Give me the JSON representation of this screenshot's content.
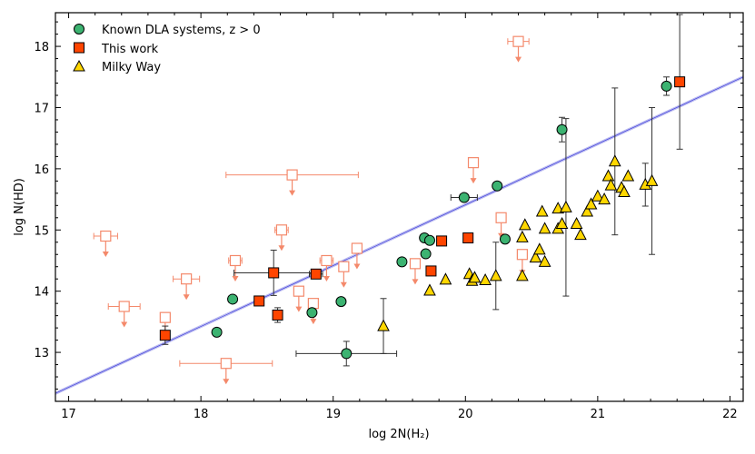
{
  "chart_data": {
    "type": "scatter",
    "xlabel": "log 2N(H₂)",
    "ylabel": "log N(HD)",
    "xlim": [
      16.9,
      22.1
    ],
    "ylim": [
      12.2,
      18.55
    ],
    "xticks": [
      17,
      18,
      19,
      20,
      21,
      22
    ],
    "yticks": [
      13,
      14,
      15,
      16,
      17,
      18
    ],
    "legend_position": "top-left",
    "fit_line": {
      "x": [
        16.9,
        22.1
      ],
      "y": [
        12.33,
        17.5
      ],
      "color": "#4a4adb"
    },
    "colors": {
      "known_dla": "#3cb371",
      "this_work": "#ff4500",
      "milky_way": "#ffd700",
      "upper_limit": "#f4896b",
      "errorbar": "#333333"
    },
    "series": [
      {
        "name": "Known DLA systems, z > 0",
        "marker": "circle",
        "points": [
          {
            "x": 18.12,
            "y": 13.33
          },
          {
            "x": 18.24,
            "y": 13.87
          },
          {
            "x": 18.84,
            "y": 13.65
          },
          {
            "x": 19.06,
            "y": 13.83
          },
          {
            "x": 19.1,
            "y": 12.98,
            "xerr": 0.38,
            "yerr": 0.2
          },
          {
            "x": 19.52,
            "y": 14.48
          },
          {
            "x": 19.69,
            "y": 14.87
          },
          {
            "x": 19.7,
            "y": 14.61
          },
          {
            "x": 19.73,
            "y": 14.83
          },
          {
            "x": 19.99,
            "y": 15.53,
            "xerr": 0.1
          },
          {
            "x": 20.24,
            "y": 15.72
          },
          {
            "x": 20.3,
            "y": 14.85
          },
          {
            "x": 20.73,
            "y": 16.64,
            "yerr": 0.2
          },
          {
            "x": 21.52,
            "y": 17.35,
            "yerr": 0.15
          }
        ]
      },
      {
        "name": "This work",
        "marker": "square",
        "points": [
          {
            "x": 17.73,
            "y": 13.28,
            "yerr": 0.15
          },
          {
            "x": 18.44,
            "y": 13.84
          },
          {
            "x": 18.55,
            "y": 14.3,
            "xerr": 0.3,
            "yerr": 0.37
          },
          {
            "x": 18.58,
            "y": 13.61,
            "yerr": 0.12
          },
          {
            "x": 18.87,
            "y": 14.28,
            "xerr": 0.05
          },
          {
            "x": 19.74,
            "y": 14.33
          },
          {
            "x": 19.82,
            "y": 14.82
          },
          {
            "x": 20.02,
            "y": 14.87
          },
          {
            "x": 21.62,
            "y": 17.42,
            "yerr": 1.1
          }
        ]
      },
      {
        "name": "Milky Way",
        "marker": "triangle",
        "points": [
          {
            "x": 19.38,
            "y": 13.43,
            "yerr": 0.45
          },
          {
            "x": 19.73,
            "y": 14.01
          },
          {
            "x": 19.85,
            "y": 14.19
          },
          {
            "x": 20.03,
            "y": 14.28
          },
          {
            "x": 20.05,
            "y": 14.17
          },
          {
            "x": 20.07,
            "y": 14.22
          },
          {
            "x": 20.15,
            "y": 14.18
          },
          {
            "x": 20.23,
            "y": 14.25,
            "yerr": 0.55
          },
          {
            "x": 20.43,
            "y": 14.25
          },
          {
            "x": 20.43,
            "y": 14.88
          },
          {
            "x": 20.45,
            "y": 15.08
          },
          {
            "x": 20.53,
            "y": 14.55
          },
          {
            "x": 20.56,
            "y": 14.68
          },
          {
            "x": 20.58,
            "y": 15.3
          },
          {
            "x": 20.6,
            "y": 14.48
          },
          {
            "x": 20.6,
            "y": 15.02
          },
          {
            "x": 20.7,
            "y": 15.35
          },
          {
            "x": 20.7,
            "y": 15.02
          },
          {
            "x": 20.73,
            "y": 15.1
          },
          {
            "x": 20.76,
            "y": 15.37,
            "yerr": 1.45
          },
          {
            "x": 20.84,
            "y": 15.1
          },
          {
            "x": 20.87,
            "y": 14.92
          },
          {
            "x": 20.92,
            "y": 15.3
          },
          {
            "x": 20.95,
            "y": 15.42
          },
          {
            "x": 21.0,
            "y": 15.55
          },
          {
            "x": 21.05,
            "y": 15.5
          },
          {
            "x": 21.08,
            "y": 15.88
          },
          {
            "x": 21.1,
            "y": 15.73
          },
          {
            "x": 21.13,
            "y": 16.12,
            "yerr": 1.2
          },
          {
            "x": 21.18,
            "y": 15.69
          },
          {
            "x": 21.2,
            "y": 15.62
          },
          {
            "x": 21.23,
            "y": 15.88
          },
          {
            "x": 21.36,
            "y": 15.74,
            "yerr": 0.35
          },
          {
            "x": 21.41,
            "y": 15.8,
            "yerr": 1.2
          }
        ]
      }
    ],
    "upper_limits": [
      {
        "x": 17.28,
        "y": 14.9,
        "xerr": 0.09
      },
      {
        "x": 17.42,
        "y": 13.75,
        "xerr": 0.12
      },
      {
        "x": 17.73,
        "y": 13.57
      },
      {
        "x": 17.89,
        "y": 14.2,
        "xerr": 0.1
      },
      {
        "x": 18.19,
        "y": 12.82,
        "xerr": 0.35
      },
      {
        "x": 18.26,
        "y": 14.5,
        "xerr": 0.05
      },
      {
        "x": 18.61,
        "y": 15.0,
        "xerr": 0.05
      },
      {
        "x": 18.69,
        "y": 15.9,
        "xerr": 0.5
      },
      {
        "x": 18.74,
        "y": 14.0
      },
      {
        "x": 18.85,
        "y": 13.8
      },
      {
        "x": 18.95,
        "y": 14.5,
        "xerr": 0.05
      },
      {
        "x": 19.08,
        "y": 14.4
      },
      {
        "x": 19.18,
        "y": 14.7
      },
      {
        "x": 19.62,
        "y": 14.45
      },
      {
        "x": 20.06,
        "y": 16.1
      },
      {
        "x": 20.27,
        "y": 15.2
      },
      {
        "x": 20.4,
        "y": 18.08,
        "xerr": 0.08
      },
      {
        "x": 20.43,
        "y": 14.6
      }
    ]
  }
}
